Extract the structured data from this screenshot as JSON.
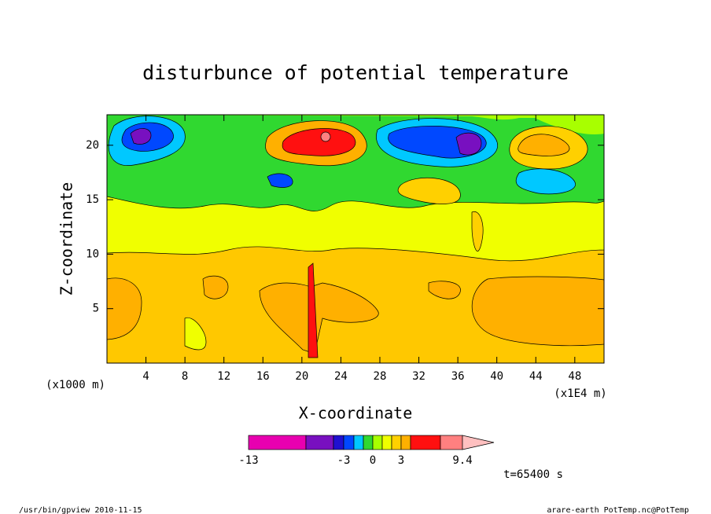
{
  "chart_data": {
    "type": "contour",
    "title": "disturbunce of potential temperature",
    "x_label": "X-coordinate",
    "y_label": "Z-coordinate",
    "x_unit_label": "(x1E4 m)",
    "y_unit_label": "(x1000 m)",
    "xlim": [
      0,
      51
    ],
    "ylim": [
      0,
      22.8
    ],
    "xticks": [
      4,
      8,
      12,
      16,
      20,
      24,
      28,
      32,
      36,
      40,
      44,
      48
    ],
    "yticks": [
      5,
      10,
      15,
      20
    ],
    "colorbar": {
      "colors": [
        "#e800b0",
        "#7810c0",
        "#2010d0",
        "#0048ff",
        "#00c8ff",
        "#30d830",
        "#a8ff00",
        "#f0ff00",
        "#ffd000",
        "#ffb000",
        "#ff1010",
        "#ff8080"
      ],
      "extend_color": "#ffc0c0",
      "ticks": [
        -13,
        -3,
        0,
        3,
        9.4
      ]
    },
    "time_label": "t=65400 s"
  },
  "footer_left": "/usr/bin/gpview  2010-11-15",
  "footer_right": "arare-earth_PotTemp.nc@PotTemp"
}
